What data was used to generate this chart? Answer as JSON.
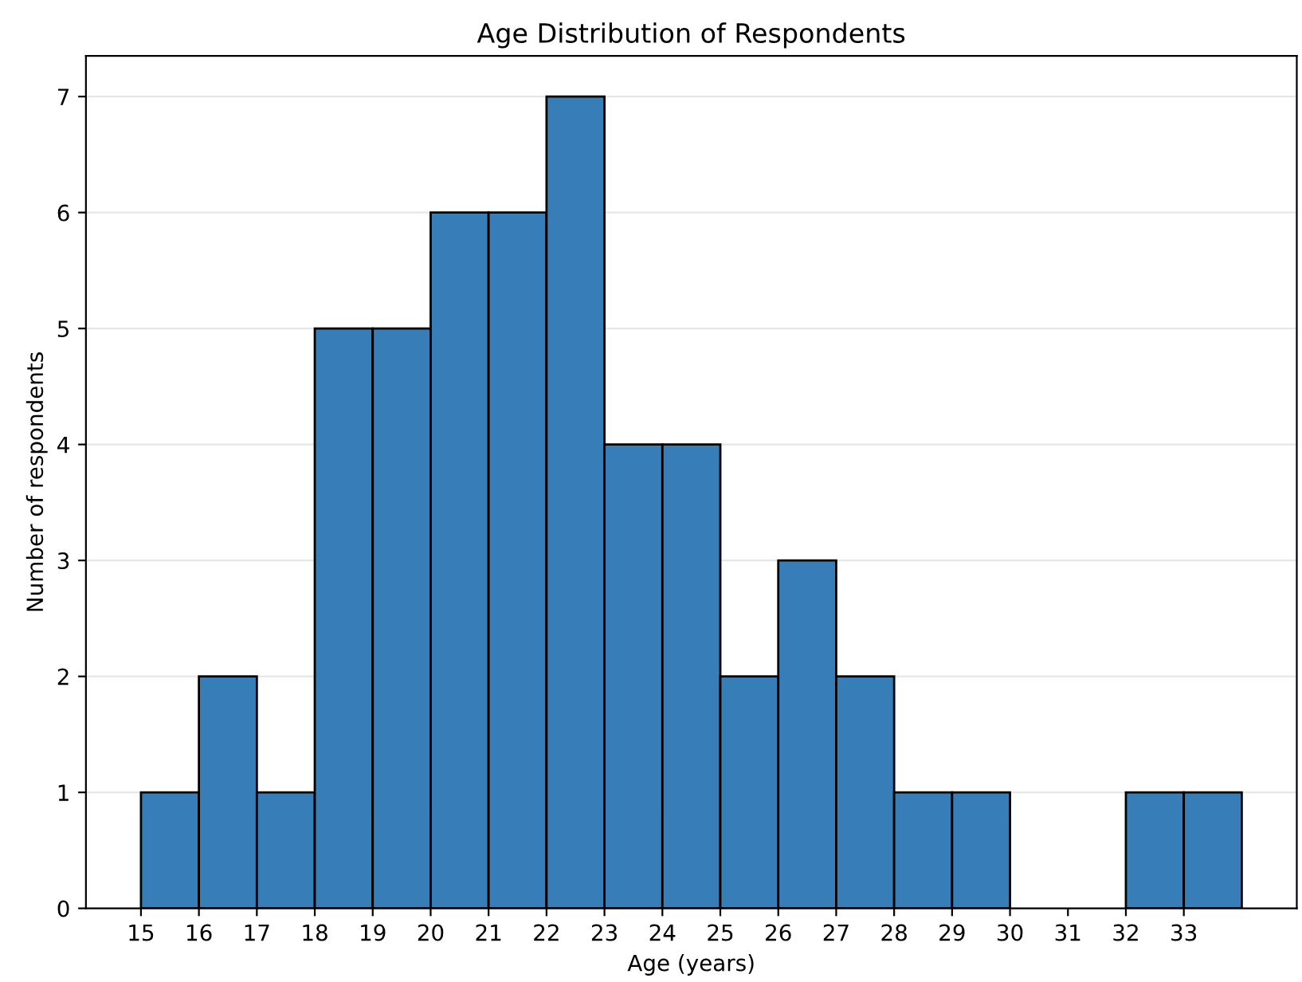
{
  "chart_data": {
    "type": "histogram",
    "title": "Age Distribution of Respondents",
    "xlabel": "Age (years)",
    "ylabel": "Number of respondents",
    "bins": [
      15,
      16,
      17,
      18,
      19,
      20,
      21,
      22,
      23,
      24,
      25,
      26,
      27,
      28,
      29,
      30,
      31,
      32,
      33,
      34
    ],
    "values": [
      1,
      2,
      1,
      5,
      5,
      6,
      6,
      7,
      4,
      4,
      2,
      3,
      2,
      1,
      1,
      0,
      0,
      1,
      1
    ],
    "color": "#377eb8",
    "xlim": [
      14.05,
      34.95
    ],
    "xticks": [
      15,
      16,
      17,
      18,
      19,
      20,
      21,
      22,
      23,
      24,
      25,
      26,
      27,
      28,
      29,
      30,
      31,
      32,
      33
    ],
    "ylim": [
      0,
      7.35
    ],
    "yticks": [
      0,
      1,
      2,
      3,
      4,
      5,
      6,
      7
    ],
    "grid": "y"
  }
}
